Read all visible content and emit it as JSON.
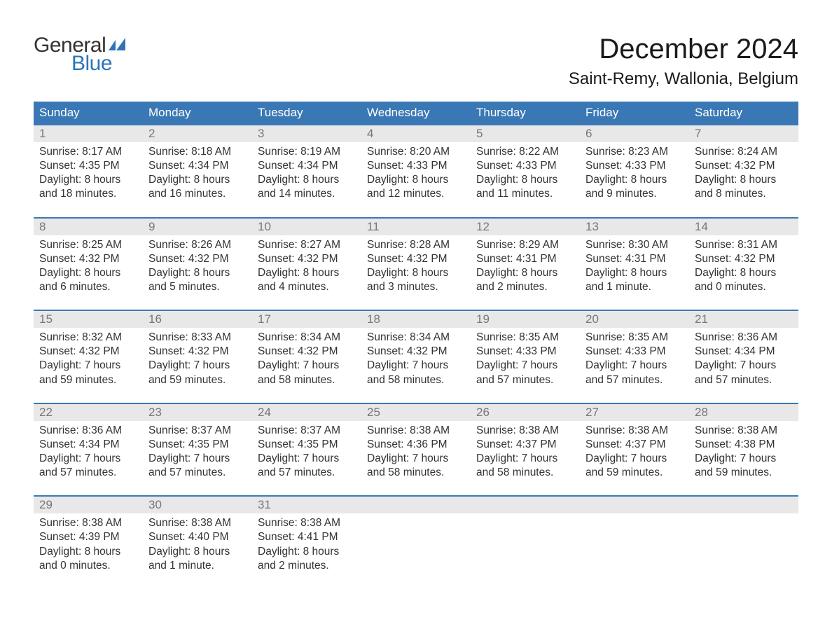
{
  "logo": {
    "text_general": "General",
    "text_blue": "Blue",
    "flag_color": "#2e75b6"
  },
  "title": "December 2024",
  "location": "Saint-Remy, Wallonia, Belgium",
  "colors": {
    "header_bg": "#3a78b5",
    "header_text": "#ffffff",
    "daynum_bg": "#e8e8e8",
    "daynum_text": "#777777",
    "body_text": "#333333",
    "row_border": "#3a78b5",
    "page_bg": "#ffffff"
  },
  "typography": {
    "title_fontsize": 40,
    "location_fontsize": 24,
    "weekday_fontsize": 17,
    "daynum_fontsize": 17,
    "cell_fontsize": 15.5,
    "font_family": "Arial, Helvetica, sans-serif"
  },
  "layout": {
    "columns": 7,
    "weeks": 5,
    "first_day_column": 0
  },
  "weekdays": [
    "Sunday",
    "Monday",
    "Tuesday",
    "Wednesday",
    "Thursday",
    "Friday",
    "Saturday"
  ],
  "days": [
    {
      "n": 1,
      "sunrise": "8:17 AM",
      "sunset": "4:35 PM",
      "daylight_l1": "Daylight: 8 hours",
      "daylight_l2": "and 18 minutes."
    },
    {
      "n": 2,
      "sunrise": "8:18 AM",
      "sunset": "4:34 PM",
      "daylight_l1": "Daylight: 8 hours",
      "daylight_l2": "and 16 minutes."
    },
    {
      "n": 3,
      "sunrise": "8:19 AM",
      "sunset": "4:34 PM",
      "daylight_l1": "Daylight: 8 hours",
      "daylight_l2": "and 14 minutes."
    },
    {
      "n": 4,
      "sunrise": "8:20 AM",
      "sunset": "4:33 PM",
      "daylight_l1": "Daylight: 8 hours",
      "daylight_l2": "and 12 minutes."
    },
    {
      "n": 5,
      "sunrise": "8:22 AM",
      "sunset": "4:33 PM",
      "daylight_l1": "Daylight: 8 hours",
      "daylight_l2": "and 11 minutes."
    },
    {
      "n": 6,
      "sunrise": "8:23 AM",
      "sunset": "4:33 PM",
      "daylight_l1": "Daylight: 8 hours",
      "daylight_l2": "and 9 minutes."
    },
    {
      "n": 7,
      "sunrise": "8:24 AM",
      "sunset": "4:32 PM",
      "daylight_l1": "Daylight: 8 hours",
      "daylight_l2": "and 8 minutes."
    },
    {
      "n": 8,
      "sunrise": "8:25 AM",
      "sunset": "4:32 PM",
      "daylight_l1": "Daylight: 8 hours",
      "daylight_l2": "and 6 minutes."
    },
    {
      "n": 9,
      "sunrise": "8:26 AM",
      "sunset": "4:32 PM",
      "daylight_l1": "Daylight: 8 hours",
      "daylight_l2": "and 5 minutes."
    },
    {
      "n": 10,
      "sunrise": "8:27 AM",
      "sunset": "4:32 PM",
      "daylight_l1": "Daylight: 8 hours",
      "daylight_l2": "and 4 minutes."
    },
    {
      "n": 11,
      "sunrise": "8:28 AM",
      "sunset": "4:32 PM",
      "daylight_l1": "Daylight: 8 hours",
      "daylight_l2": "and 3 minutes."
    },
    {
      "n": 12,
      "sunrise": "8:29 AM",
      "sunset": "4:31 PM",
      "daylight_l1": "Daylight: 8 hours",
      "daylight_l2": "and 2 minutes."
    },
    {
      "n": 13,
      "sunrise": "8:30 AM",
      "sunset": "4:31 PM",
      "daylight_l1": "Daylight: 8 hours",
      "daylight_l2": "and 1 minute."
    },
    {
      "n": 14,
      "sunrise": "8:31 AM",
      "sunset": "4:32 PM",
      "daylight_l1": "Daylight: 8 hours",
      "daylight_l2": "and 0 minutes."
    },
    {
      "n": 15,
      "sunrise": "8:32 AM",
      "sunset": "4:32 PM",
      "daylight_l1": "Daylight: 7 hours",
      "daylight_l2": "and 59 minutes."
    },
    {
      "n": 16,
      "sunrise": "8:33 AM",
      "sunset": "4:32 PM",
      "daylight_l1": "Daylight: 7 hours",
      "daylight_l2": "and 59 minutes."
    },
    {
      "n": 17,
      "sunrise": "8:34 AM",
      "sunset": "4:32 PM",
      "daylight_l1": "Daylight: 7 hours",
      "daylight_l2": "and 58 minutes."
    },
    {
      "n": 18,
      "sunrise": "8:34 AM",
      "sunset": "4:32 PM",
      "daylight_l1": "Daylight: 7 hours",
      "daylight_l2": "and 58 minutes."
    },
    {
      "n": 19,
      "sunrise": "8:35 AM",
      "sunset": "4:33 PM",
      "daylight_l1": "Daylight: 7 hours",
      "daylight_l2": "and 57 minutes."
    },
    {
      "n": 20,
      "sunrise": "8:35 AM",
      "sunset": "4:33 PM",
      "daylight_l1": "Daylight: 7 hours",
      "daylight_l2": "and 57 minutes."
    },
    {
      "n": 21,
      "sunrise": "8:36 AM",
      "sunset": "4:34 PM",
      "daylight_l1": "Daylight: 7 hours",
      "daylight_l2": "and 57 minutes."
    },
    {
      "n": 22,
      "sunrise": "8:36 AM",
      "sunset": "4:34 PM",
      "daylight_l1": "Daylight: 7 hours",
      "daylight_l2": "and 57 minutes."
    },
    {
      "n": 23,
      "sunrise": "8:37 AM",
      "sunset": "4:35 PM",
      "daylight_l1": "Daylight: 7 hours",
      "daylight_l2": "and 57 minutes."
    },
    {
      "n": 24,
      "sunrise": "8:37 AM",
      "sunset": "4:35 PM",
      "daylight_l1": "Daylight: 7 hours",
      "daylight_l2": "and 57 minutes."
    },
    {
      "n": 25,
      "sunrise": "8:38 AM",
      "sunset": "4:36 PM",
      "daylight_l1": "Daylight: 7 hours",
      "daylight_l2": "and 58 minutes."
    },
    {
      "n": 26,
      "sunrise": "8:38 AM",
      "sunset": "4:37 PM",
      "daylight_l1": "Daylight: 7 hours",
      "daylight_l2": "and 58 minutes."
    },
    {
      "n": 27,
      "sunrise": "8:38 AM",
      "sunset": "4:37 PM",
      "daylight_l1": "Daylight: 7 hours",
      "daylight_l2": "and 59 minutes."
    },
    {
      "n": 28,
      "sunrise": "8:38 AM",
      "sunset": "4:38 PM",
      "daylight_l1": "Daylight: 7 hours",
      "daylight_l2": "and 59 minutes."
    },
    {
      "n": 29,
      "sunrise": "8:38 AM",
      "sunset": "4:39 PM",
      "daylight_l1": "Daylight: 8 hours",
      "daylight_l2": "and 0 minutes."
    },
    {
      "n": 30,
      "sunrise": "8:38 AM",
      "sunset": "4:40 PM",
      "daylight_l1": "Daylight: 8 hours",
      "daylight_l2": "and 1 minute."
    },
    {
      "n": 31,
      "sunrise": "8:38 AM",
      "sunset": "4:41 PM",
      "daylight_l1": "Daylight: 8 hours",
      "daylight_l2": "and 2 minutes."
    }
  ],
  "labels": {
    "sunrise_prefix": "Sunrise: ",
    "sunset_prefix": "Sunset: "
  }
}
